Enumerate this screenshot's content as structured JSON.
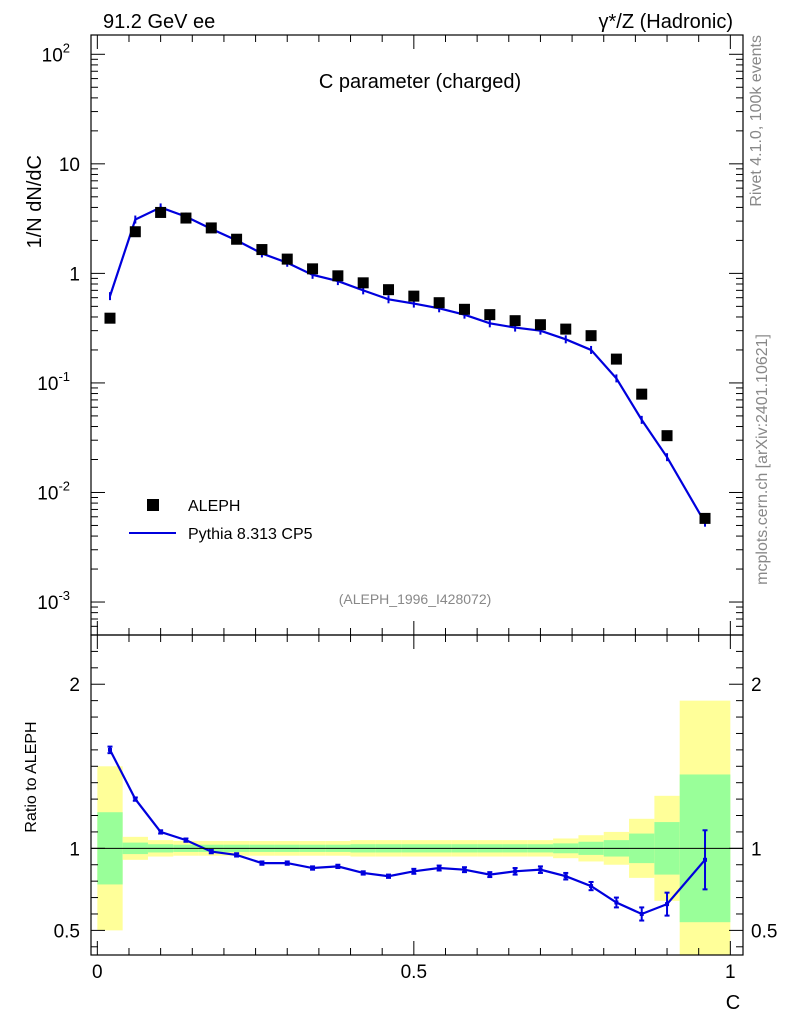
{
  "header": {
    "left": "91.2 GeV ee",
    "right": "γ*/Z (Hadronic)"
  },
  "side": {
    "rivet": "Rivet 4.1.0,  100k events",
    "mcplots": "mcplots.cern.ch [arXiv:2401.10621]"
  },
  "chart_data": [
    {
      "type": "scatter",
      "title": "C parameter (charged)",
      "ylabel": "1/N  dN/dC",
      "yscale": "log",
      "ylim": [
        0.0005,
        150
      ],
      "xlim": [
        -0.01,
        1.02
      ],
      "yticks": [
        {
          "v": 0.001,
          "base": "10",
          "exp": "-3"
        },
        {
          "v": 0.01,
          "base": "10",
          "exp": "-2"
        },
        {
          "v": 0.1,
          "base": "10",
          "exp": "-1"
        },
        {
          "v": 1,
          "base": "1",
          "exp": ""
        },
        {
          "v": 10,
          "base": "10",
          "exp": ""
        },
        {
          "v": 100,
          "base": "10",
          "exp": "2"
        }
      ],
      "analysis_tag": "(ALEPH_1996_I428072)",
      "legend": [
        "ALEPH",
        "Pythia 8.313 CP5"
      ],
      "x": [
        0.02,
        0.06,
        0.1,
        0.14,
        0.18,
        0.22,
        0.26,
        0.3,
        0.34,
        0.38,
        0.42,
        0.46,
        0.5,
        0.54,
        0.58,
        0.62,
        0.66,
        0.7,
        0.74,
        0.78,
        0.82,
        0.86,
        0.9,
        0.96
      ],
      "series": [
        {
          "name": "ALEPH",
          "values": [
            0.39,
            2.4,
            3.6,
            3.2,
            2.6,
            2.05,
            1.65,
            1.35,
            1.1,
            0.95,
            0.82,
            0.71,
            0.62,
            0.54,
            0.47,
            0.42,
            0.37,
            0.34,
            0.31,
            0.27,
            0.165,
            0.079,
            0.033,
            0.0058
          ]
        },
        {
          "name": "Pythia 8.313 CP5",
          "values": [
            0.62,
            3.1,
            4.0,
            3.3,
            2.55,
            2.0,
            1.52,
            1.25,
            0.97,
            0.85,
            0.7,
            0.58,
            0.53,
            0.48,
            0.42,
            0.35,
            0.32,
            0.3,
            0.25,
            0.2,
            0.11,
            0.046,
            0.021,
            0.0053
          ]
        }
      ]
    },
    {
      "type": "line",
      "ylabel": "Ratio to ALEPH",
      "xlabel": "C",
      "ylim": [
        0.35,
        2.3
      ],
      "xlim": [
        -0.01,
        1.02
      ],
      "yticks": [
        "0.5",
        "1",
        "2"
      ],
      "xticks": [
        "0",
        "0.5",
        "1"
      ],
      "x": [
        0.02,
        0.06,
        0.1,
        0.14,
        0.18,
        0.22,
        0.26,
        0.3,
        0.34,
        0.38,
        0.42,
        0.46,
        0.5,
        0.54,
        0.58,
        0.62,
        0.66,
        0.7,
        0.74,
        0.78,
        0.82,
        0.86,
        0.9,
        0.96
      ],
      "ratio": [
        1.6,
        1.3,
        1.1,
        1.05,
        0.98,
        0.96,
        0.91,
        0.91,
        0.88,
        0.89,
        0.85,
        0.83,
        0.86,
        0.88,
        0.87,
        0.84,
        0.86,
        0.87,
        0.83,
        0.77,
        0.67,
        0.6,
        0.66,
        0.93
      ],
      "ratio_err": [
        0.02,
        0.01,
        0.01,
        0.01,
        0.01,
        0.01,
        0.01,
        0.01,
        0.01,
        0.01,
        0.01,
        0.01,
        0.015,
        0.015,
        0.015,
        0.015,
        0.02,
        0.02,
        0.02,
        0.025,
        0.03,
        0.04,
        0.07,
        0.18
      ],
      "bins": [
        0.0,
        0.04,
        0.08,
        0.12,
        0.16,
        0.2,
        0.24,
        0.28,
        0.32,
        0.36,
        0.4,
        0.44,
        0.48,
        0.52,
        0.56,
        0.6,
        0.64,
        0.68,
        0.72,
        0.76,
        0.8,
        0.84,
        0.88,
        0.92,
        1.0
      ],
      "band_green": [
        0.22,
        0.035,
        0.025,
        0.022,
        0.022,
        0.022,
        0.022,
        0.022,
        0.022,
        0.022,
        0.025,
        0.025,
        0.025,
        0.025,
        0.025,
        0.025,
        0.025,
        0.025,
        0.03,
        0.04,
        0.05,
        0.09,
        0.16,
        0.45
      ],
      "band_yellow": [
        0.5,
        0.07,
        0.05,
        0.045,
        0.045,
        0.045,
        0.045,
        0.045,
        0.045,
        0.045,
        0.05,
        0.05,
        0.05,
        0.05,
        0.05,
        0.05,
        0.05,
        0.05,
        0.06,
        0.08,
        0.1,
        0.18,
        0.32,
        0.9
      ]
    }
  ],
  "colors": {
    "mc": "#0000dd",
    "data": "#000000",
    "band_green": "#99ff99",
    "band_yellow": "#ffff99"
  }
}
